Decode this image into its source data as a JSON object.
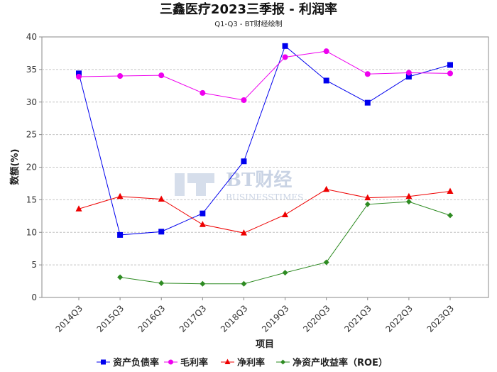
{
  "chart_data": {
    "type": "line",
    "title": "三鑫医疗2023三季报 - 利润率",
    "subtitle": "Q1-Q3 - BT财经绘制",
    "xlabel": "项目",
    "ylabel": "数额(%)",
    "ylim": [
      0,
      40
    ],
    "yticks": [
      0,
      5,
      10,
      15,
      20,
      25,
      30,
      35,
      40
    ],
    "grid": true,
    "legend_position": "bottom",
    "categories": [
      "2014Q3",
      "2015Q3",
      "2016Q3",
      "2017Q3",
      "2018Q3",
      "2019Q3",
      "2020Q3",
      "2021Q3",
      "2022Q3",
      "2023Q3"
    ],
    "series": [
      {
        "name": "资产负债率",
        "color": "#0000ee",
        "marker": "square",
        "values": [
          34.4,
          9.6,
          10.1,
          12.9,
          20.9,
          38.6,
          33.3,
          29.9,
          33.9,
          35.7
        ]
      },
      {
        "name": "毛利率",
        "color": "#ee00ee",
        "marker": "circle",
        "values": [
          33.9,
          34.0,
          34.1,
          31.4,
          30.3,
          36.9,
          37.8,
          34.3,
          34.5,
          34.4
        ]
      },
      {
        "name": "净利率",
        "color": "#ee0000",
        "marker": "triangle",
        "values": [
          13.6,
          15.5,
          15.1,
          11.2,
          9.9,
          12.7,
          16.6,
          15.3,
          15.5,
          16.3
        ]
      },
      {
        "name": "净资产收益率（ROE）",
        "color": "#2e8b22",
        "marker": "diamond",
        "values": [
          null,
          3.1,
          2.2,
          2.1,
          2.1,
          3.8,
          5.4,
          14.3,
          14.7,
          12.6
        ]
      }
    ]
  },
  "watermark": {
    "text_main": "BT财经",
    "text_sub": "BUSINESSTIMES"
  }
}
